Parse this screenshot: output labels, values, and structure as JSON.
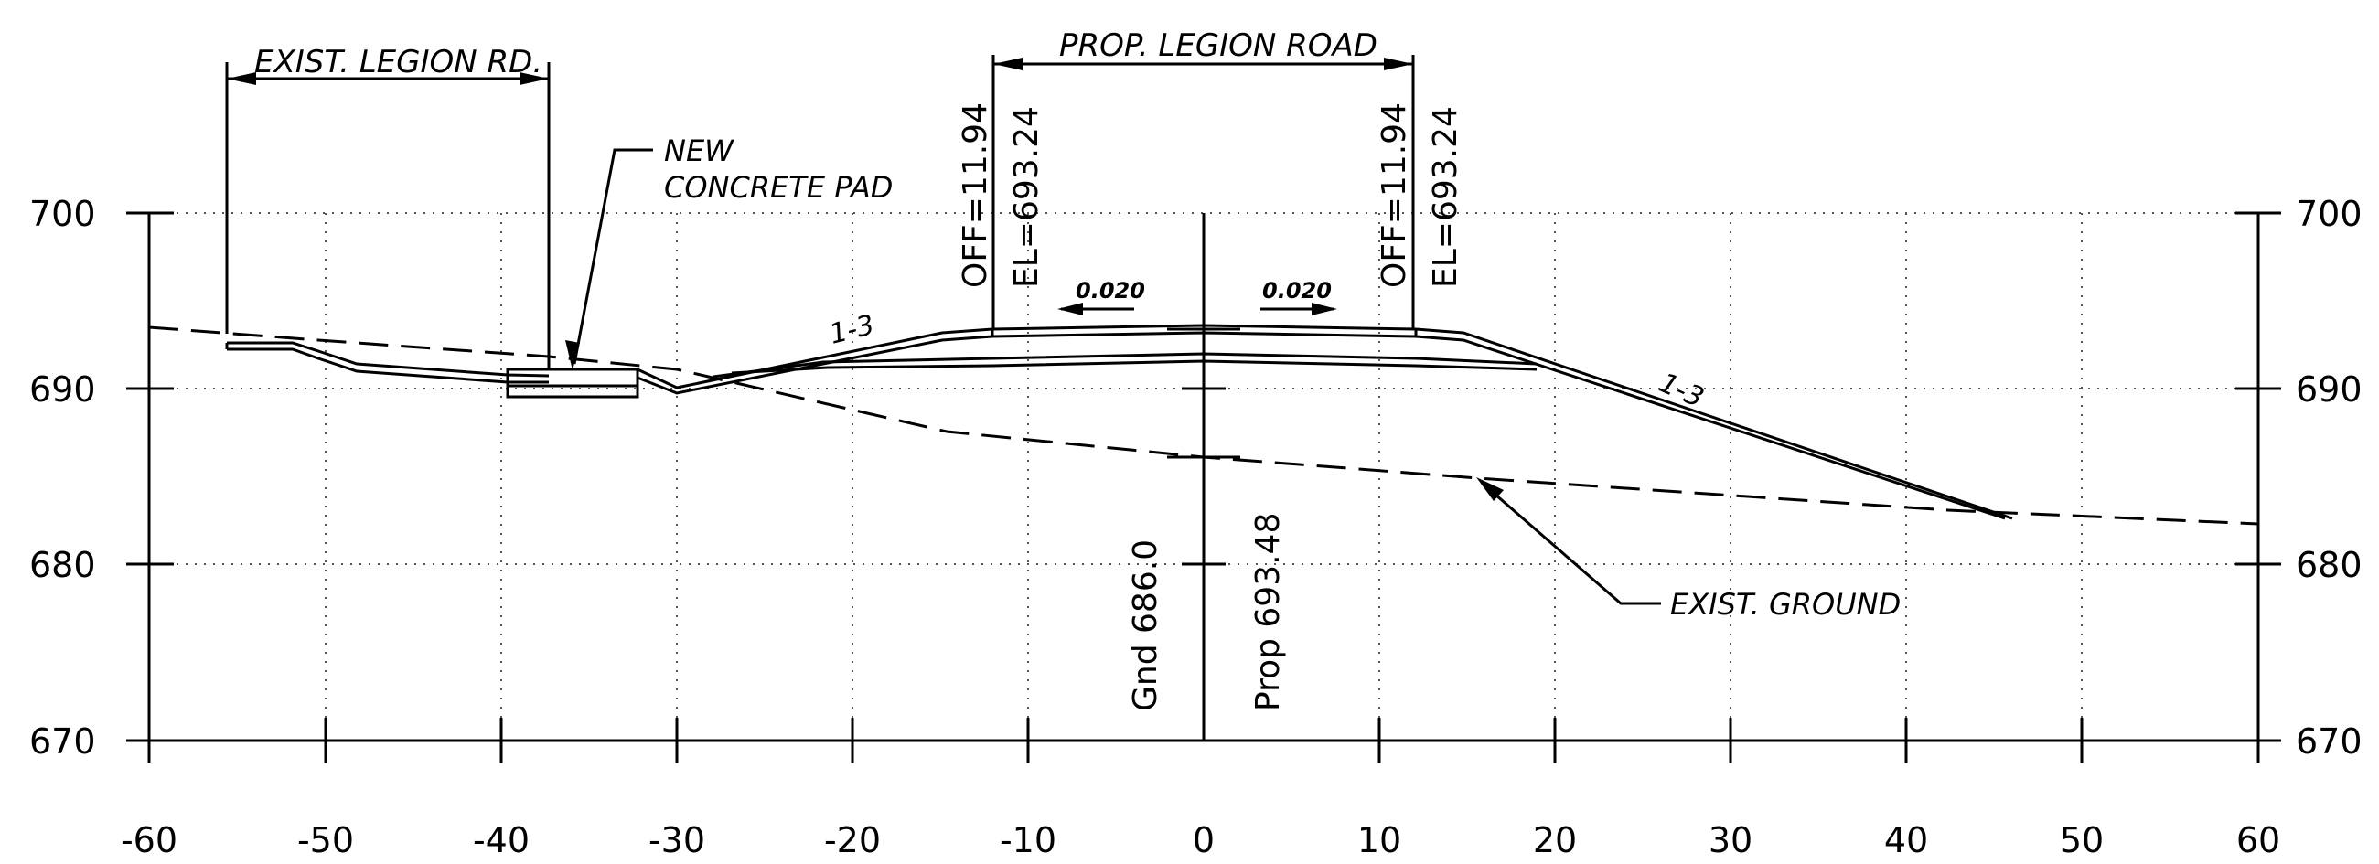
{
  "axes": {
    "x_ticks": [
      "-60",
      "-50",
      "-40",
      "-30",
      "-20",
      "-10",
      "0",
      "10",
      "20",
      "30",
      "40",
      "50",
      "60"
    ],
    "y_ticks": [
      "700",
      "690",
      "680",
      "670"
    ]
  },
  "labels": {
    "exist_legion_rd": "EXIST. LEGION RD.",
    "prop_legion_road": "PROP. LEGION ROAD",
    "new_pad_line1": "NEW",
    "new_pad_line2": "CONCRETE PAD",
    "exist_ground": "EXIST. GROUND",
    "slope_left": "1-3",
    "slope_right": "1-3",
    "cross_slope_left": "0.020",
    "cross_slope_right": "0.020",
    "left_off": "OFF=11.94",
    "left_el": "EL=693.24",
    "right_off": "OFF=11.94",
    "right_el": "EL=693.24",
    "gnd_elev": "Gnd 686.0",
    "prop_elev": "Prop 693.48"
  },
  "colors": {
    "line": "#000000",
    "grid": "#555555",
    "background": "#ffffff"
  }
}
